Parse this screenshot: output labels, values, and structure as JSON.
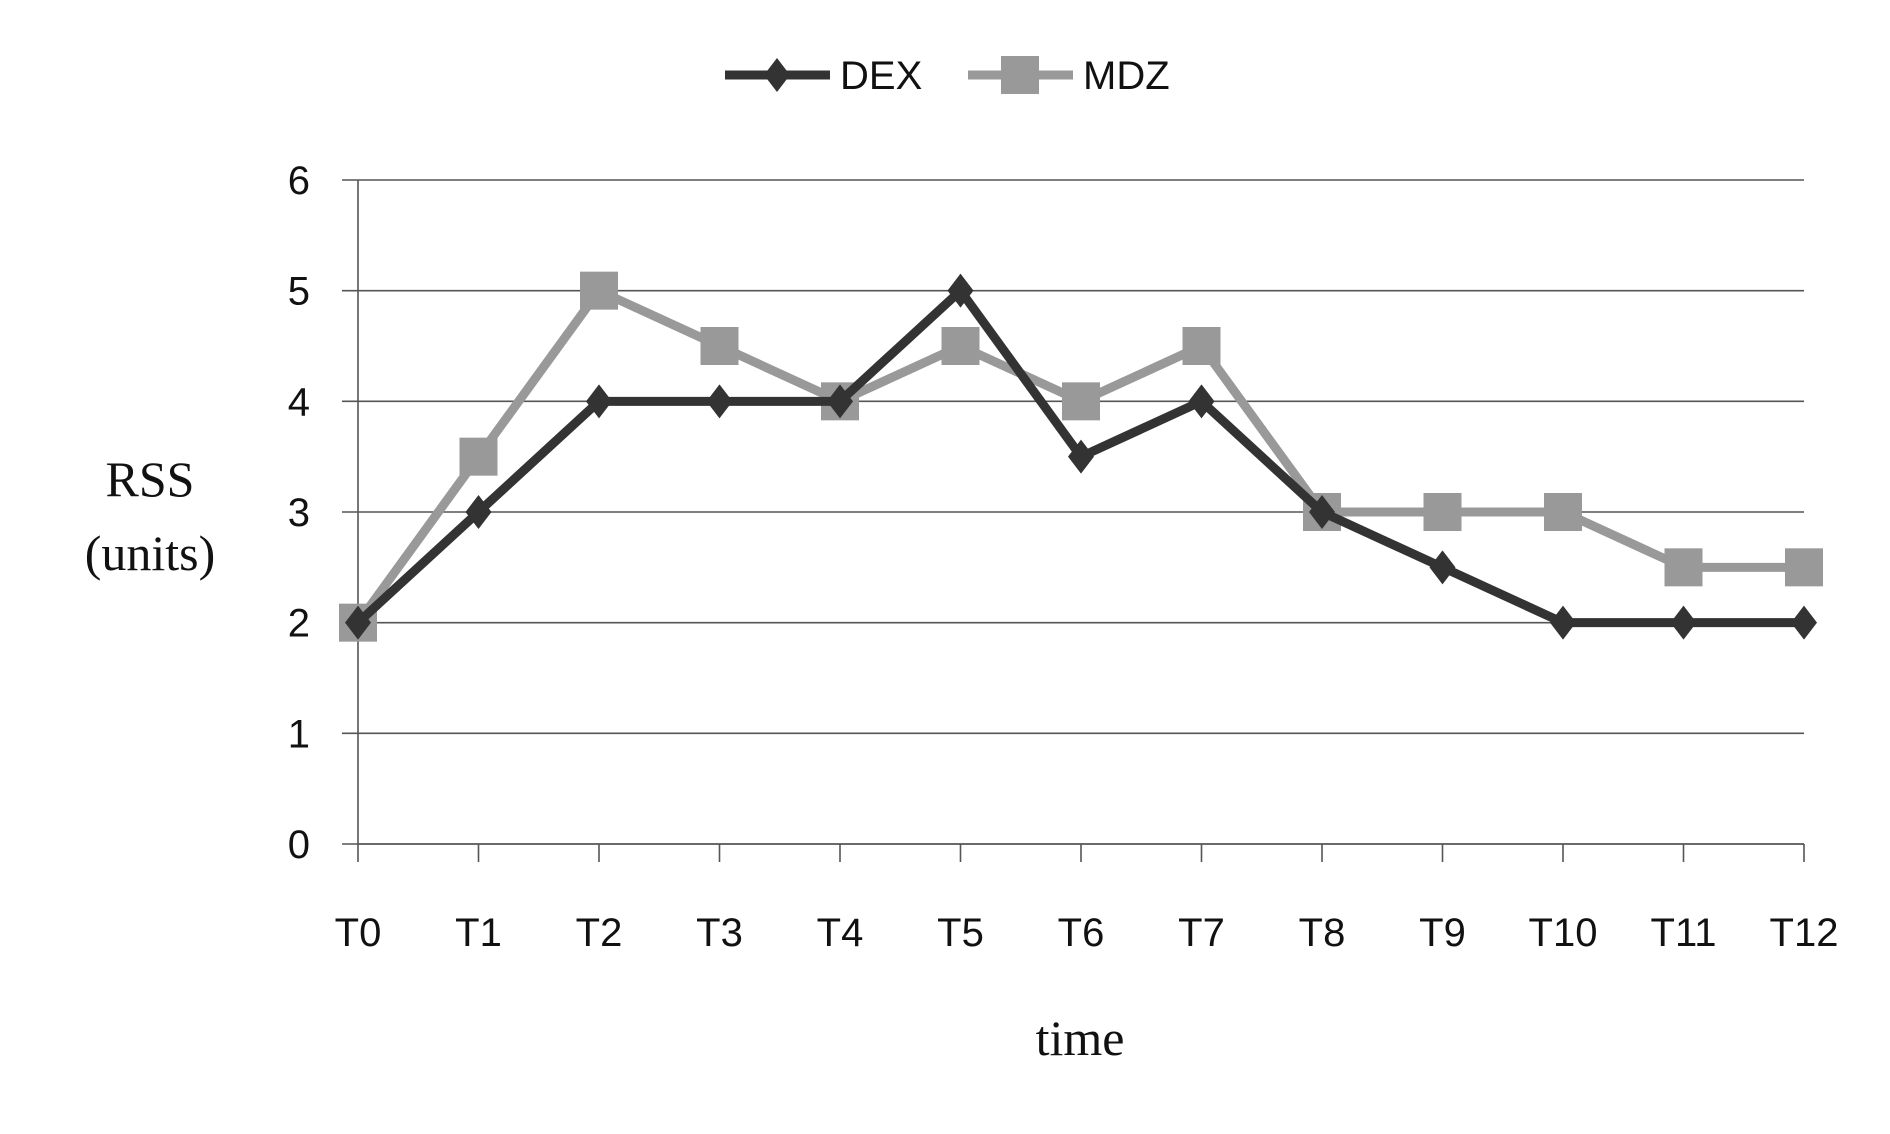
{
  "chart_data": {
    "type": "line",
    "title": "",
    "xlabel": "time",
    "ylabel": [
      "RSS",
      "(units)"
    ],
    "categories": [
      "T0",
      "T1",
      "T2",
      "T3",
      "T4",
      "T5",
      "T6",
      "T7",
      "T8",
      "T9",
      "T10",
      "T11",
      "T12"
    ],
    "ylim": [
      0,
      6
    ],
    "yticks": [
      "0",
      "1",
      "2",
      "3",
      "4",
      "5",
      "6"
    ],
    "grid": true,
    "legend_position": "top-center",
    "series": [
      {
        "name": "DEX",
        "color": "#333333",
        "marker": "diamond",
        "values": [
          2,
          3,
          4,
          4,
          4,
          5,
          3.5,
          4,
          3,
          2.5,
          2,
          2,
          2
        ]
      },
      {
        "name": "MDZ",
        "color": "#999999",
        "marker": "square",
        "values": [
          2,
          3.5,
          5,
          4.5,
          4,
          4.5,
          4,
          4.5,
          3,
          3,
          3,
          2.5,
          2.5
        ]
      }
    ]
  }
}
